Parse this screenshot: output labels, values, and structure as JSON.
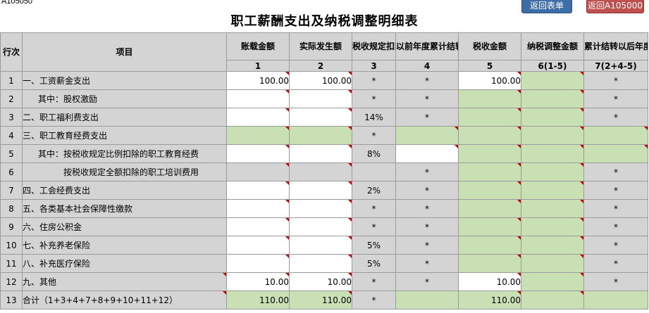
{
  "form_code": "A105050",
  "title": "职工薪酬支出及纳税调整明细表",
  "buttons": {
    "back_form": "返回表单",
    "back_a105000": "返回A105000"
  },
  "headers": {
    "row_no": "行次",
    "item": "项目",
    "book_amount": "账载金额",
    "actual_amount": "实际发生额",
    "tax_rate": "税收规定扣除率",
    "prior_carryover": "以前年度累计结转扣除额",
    "tax_amount": "税收金额",
    "adjust_amount": "纳税调整金额",
    "future_carryover": "累计结转以后年度扣除额"
  },
  "col_numbers": [
    "1",
    "2",
    "3",
    "4",
    "5",
    "6(1-5)",
    "7(2+4-5)"
  ],
  "rows": [
    {
      "no": "1",
      "item": "一、工资薪金支出",
      "c1": "100.00",
      "c2": "100.00",
      "c3": "*",
      "c4": "*",
      "c5": "100.00",
      "c6": "",
      "c7": "*"
    },
    {
      "no": "2",
      "item": "其中：股权激励",
      "c1": "",
      "c2": "",
      "c3": "*",
      "c4": "*",
      "c5": "",
      "c6": "",
      "c7": "*"
    },
    {
      "no": "3",
      "item": "二、职工福利费支出",
      "c1": "",
      "c2": "",
      "c3": "14%",
      "c4": "*",
      "c5": "",
      "c6": "",
      "c7": "*"
    },
    {
      "no": "4",
      "item": "三、职工教育经费支出",
      "c1": "",
      "c2": "",
      "c3": "*",
      "c4": "",
      "c5": "",
      "c6": "",
      "c7": ""
    },
    {
      "no": "5",
      "item": "其中：按税收规定比例扣除的职工教育经费",
      "c1": "",
      "c2": "",
      "c3": "8%",
      "c4": "",
      "c5": "",
      "c6": "",
      "c7": ""
    },
    {
      "no": "6",
      "item": "按税收规定全额扣除的职工培训费用",
      "c1": "",
      "c2": "",
      "c3": "",
      "c4": "*",
      "c5": "",
      "c6": "",
      "c7": "*"
    },
    {
      "no": "7",
      "item": "四、工会经费支出",
      "c1": "",
      "c2": "",
      "c3": "2%",
      "c4": "*",
      "c5": "",
      "c6": "",
      "c7": "*"
    },
    {
      "no": "8",
      "item": "五、各类基本社会保障性缴款",
      "c1": "",
      "c2": "",
      "c3": "*",
      "c4": "*",
      "c5": "",
      "c6": "",
      "c7": "*"
    },
    {
      "no": "9",
      "item": "六、住房公积金",
      "c1": "",
      "c2": "",
      "c3": "*",
      "c4": "*",
      "c5": "",
      "c6": "",
      "c7": "*"
    },
    {
      "no": "10",
      "item": "七、补充养老保险",
      "c1": "",
      "c2": "",
      "c3": "5%",
      "c4": "*",
      "c5": "",
      "c6": "",
      "c7": "*"
    },
    {
      "no": "11",
      "item": "八、补充医疗保险",
      "c1": "",
      "c2": "",
      "c3": "5%",
      "c4": "*",
      "c5": "",
      "c6": "",
      "c7": "*"
    },
    {
      "no": "12",
      "item": "九、其他",
      "c1": "10.00",
      "c2": "10.00",
      "c3": "*",
      "c4": "*",
      "c5": "10.00",
      "c6": "",
      "c7": "*"
    },
    {
      "no": "13",
      "item": "合计（1+3+4+7+8+9+10+11+12）",
      "c1": "110.00",
      "c2": "110.00",
      "c3": "*",
      "c4": "",
      "c5": "110.00",
      "c6": "",
      "c7": ""
    }
  ],
  "colors": {
    "header_gray": "#d4d4d4",
    "input_white": "#ffffff",
    "calc_green": "#c8e0b4",
    "marker_red": "#c00000"
  }
}
